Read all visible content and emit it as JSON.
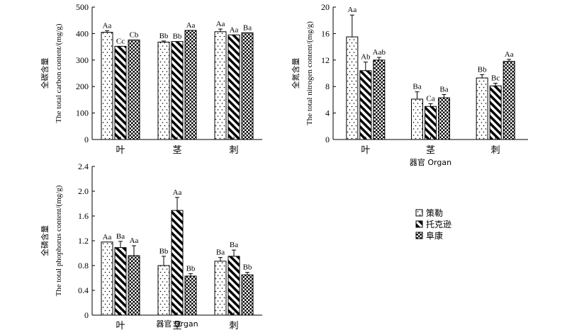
{
  "legend": [
    "策勒",
    "托克逊",
    "阜康"
  ],
  "chart_data": [
    {
      "type": "bar",
      "ylabel_cn": "全碳含量",
      "ylabel_en": "The total carbon content/(mg/g)",
      "xlabel": "",
      "categories": [
        "叶",
        "茎",
        "刺"
      ],
      "ylim": [
        0,
        500
      ],
      "yticks": [
        "0",
        "100",
        "200",
        "300",
        "400",
        "500"
      ],
      "series": [
        {
          "name": "策勒",
          "values": [
            405,
            368,
            407
          ],
          "errors": [
            6,
            4,
            10
          ],
          "labels": [
            "Aa",
            "Bb",
            "Aa"
          ]
        },
        {
          "name": "托克逊",
          "values": [
            352,
            370,
            395
          ],
          "errors": [
            0,
            0,
            0
          ],
          "labels": [
            "Cc",
            "Bb",
            "Aa"
          ]
        },
        {
          "name": "阜康",
          "values": [
            376,
            412,
            403
          ],
          "errors": [
            0,
            0,
            0
          ],
          "labels": [
            "Cb",
            "Aa",
            "Ba"
          ]
        }
      ]
    },
    {
      "type": "bar",
      "ylabel_cn": "全氮含量",
      "ylabel_en": "The total nitrogen content/(mg/g)",
      "xlabel": "器官 Organ",
      "categories": [
        "叶",
        "茎",
        "刺"
      ],
      "ylim": [
        0,
        20
      ],
      "yticks": [
        "0",
        "4",
        "8",
        "12",
        "16",
        "20"
      ],
      "series": [
        {
          "name": "策勒",
          "values": [
            15.5,
            6.1,
            9.3
          ],
          "errors": [
            3.3,
            1.1,
            0.5
          ],
          "labels": [
            "Aa",
            "Ba",
            "Bb"
          ]
        },
        {
          "name": "托克逊",
          "values": [
            10.4,
            5.0,
            8.1
          ],
          "errors": [
            1.3,
            0.4,
            0.4
          ],
          "labels": [
            "Ab",
            "Ca",
            "Bc"
          ]
        },
        {
          "name": "阜康",
          "values": [
            12.0,
            6.3,
            11.8
          ],
          "errors": [
            0.4,
            0.5,
            0.3
          ],
          "labels": [
            "Aab",
            "Ba",
            "Aa"
          ]
        }
      ]
    },
    {
      "type": "bar",
      "ylabel_cn": "全磷含量",
      "ylabel_en": "The total phophorus content/(mg/g)",
      "xlabel": "器官 Organ",
      "categories": [
        "叶",
        "茎",
        "刺"
      ],
      "ylim": [
        0,
        2.4
      ],
      "yticks": [
        "0",
        "0.4",
        "0.8",
        "1.2",
        "1.6",
        "2.0",
        "2.4"
      ],
      "series": [
        {
          "name": "策勒",
          "values": [
            1.18,
            0.8,
            0.87
          ],
          "errors": [
            0,
            0.15,
            0.06
          ],
          "labels": [
            "Aa",
            "Bb",
            "Ba"
          ]
        },
        {
          "name": "托克逊",
          "values": [
            1.09,
            1.69,
            0.95
          ],
          "errors": [
            0.1,
            0.21,
            0.1
          ],
          "labels": [
            "Ba",
            "Aa",
            "Ba"
          ]
        },
        {
          "name": "阜康",
          "values": [
            0.96,
            0.63,
            0.65
          ],
          "errors": [
            0.16,
            0.04,
            0.04
          ],
          "labels": [
            "Aa",
            "Bb",
            "Bb"
          ]
        }
      ]
    }
  ]
}
